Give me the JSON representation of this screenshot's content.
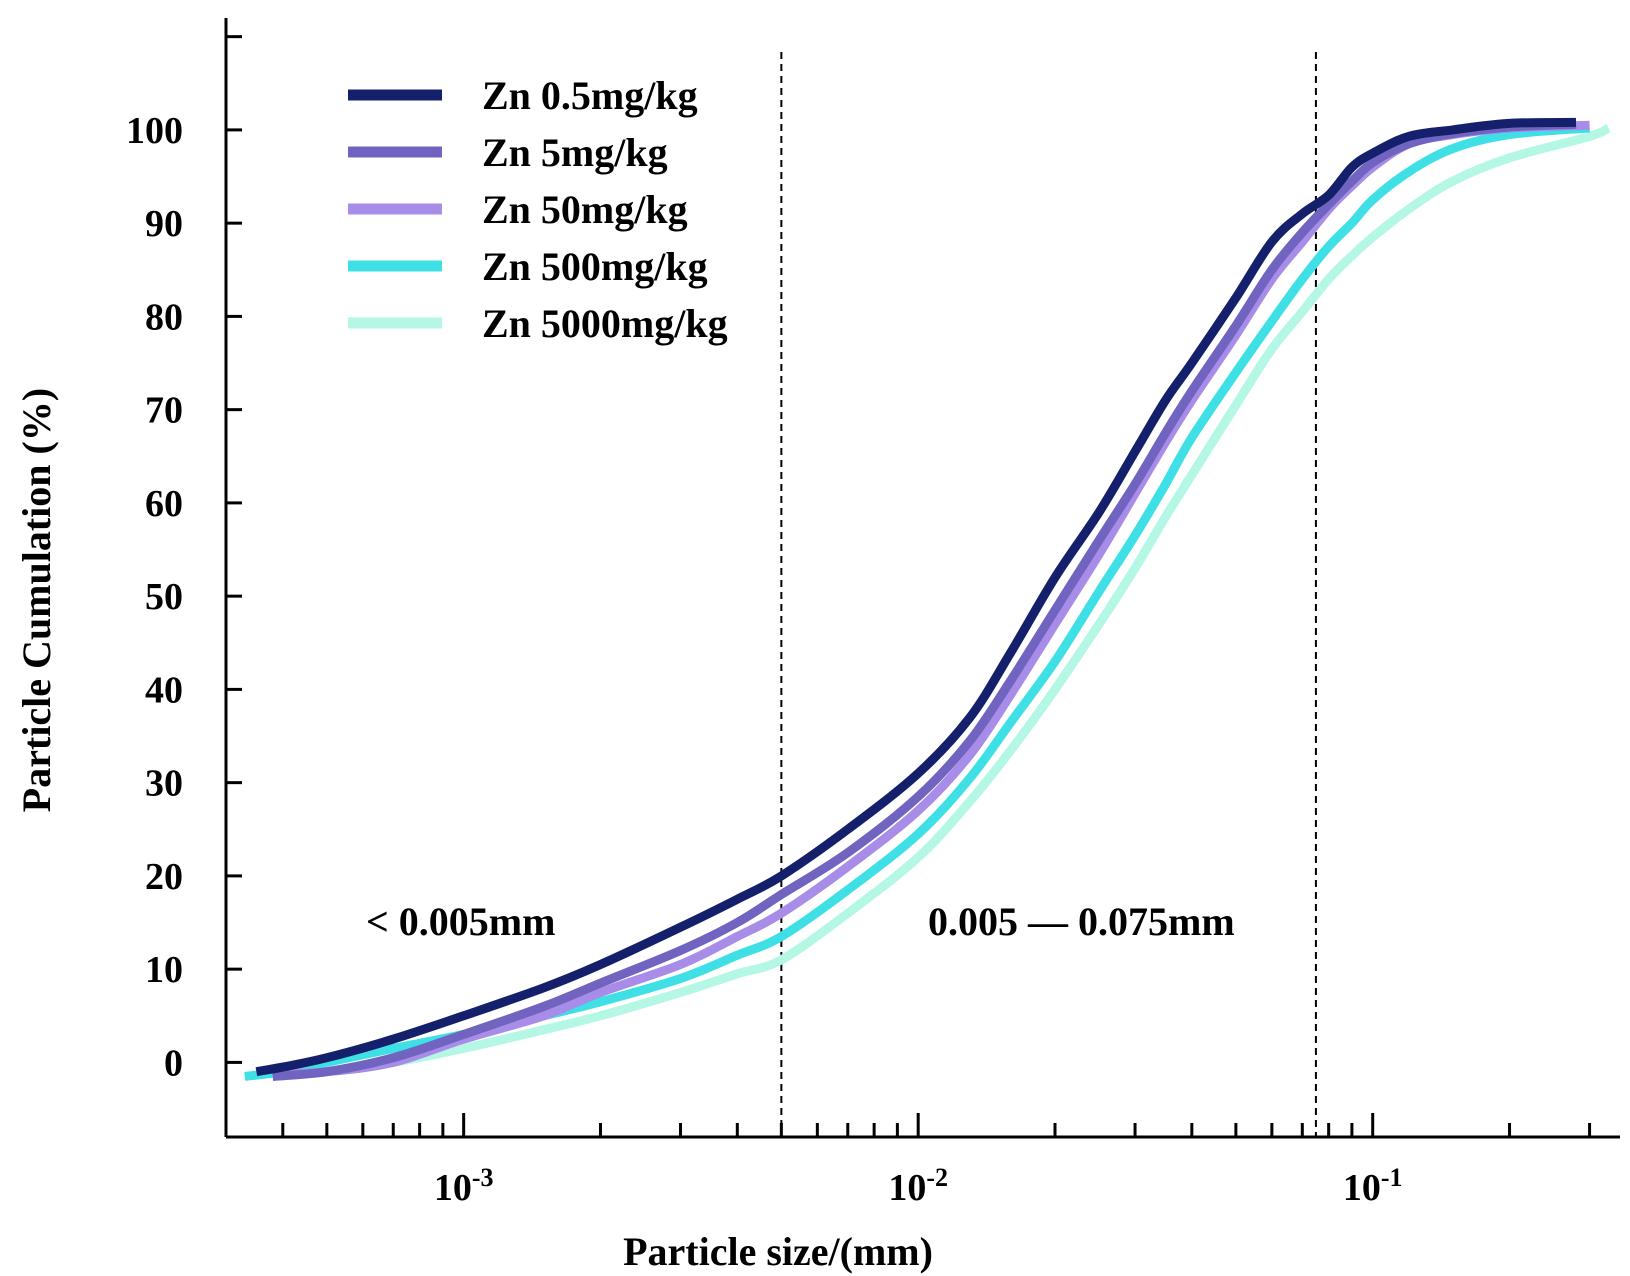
{
  "chart_data": {
    "type": "line",
    "xlabel": "Particle size/(mm)",
    "ylabel": "Particle Cumulation (%)",
    "x_scale": "log",
    "xlim": [
      0.0003,
      0.35
    ],
    "ylim": [
      -8,
      112
    ],
    "x_ticks": [
      {
        "base": "10",
        "exp": "-3",
        "value": 0.001
      },
      {
        "base": "10",
        "exp": "-2",
        "value": 0.01
      },
      {
        "base": "10",
        "exp": "-1",
        "value": 0.1
      }
    ],
    "y_ticks": [
      "0",
      "10",
      "20",
      "30",
      "40",
      "50",
      "60",
      "70",
      "80",
      "90",
      "100"
    ],
    "grid": false,
    "legend_position": "top-left",
    "reference_lines": [
      0.005,
      0.075
    ],
    "annotations": [
      {
        "text": "< 0.005mm"
      },
      {
        "text": "0.005 — 0.075mm"
      }
    ],
    "series": [
      {
        "name": "Zn 0.5mg/kg",
        "color": "#14206b",
        "x": [
          0.00035,
          0.0004,
          0.0005,
          0.0007,
          0.001,
          0.0015,
          0.002,
          0.003,
          0.004,
          0.005,
          0.007,
          0.01,
          0.013,
          0.016,
          0.02,
          0.025,
          0.03,
          0.035,
          0.04,
          0.05,
          0.06,
          0.07,
          0.08,
          0.09,
          0.1,
          0.12,
          0.15,
          0.2,
          0.28
        ],
        "y": [
          -1,
          -0.5,
          0.5,
          2.5,
          5,
          8,
          10.5,
          14.5,
          17.5,
          20,
          25,
          31,
          37,
          44,
          52,
          59,
          65.5,
          71,
          75,
          82,
          88,
          91,
          93,
          96,
          97.5,
          99.3,
          100,
          100.7,
          100.8
        ]
      },
      {
        "name": "Zn 5mg/kg",
        "color": "#7064c0",
        "x": [
          0.00038,
          0.0005,
          0.0007,
          0.001,
          0.0015,
          0.002,
          0.003,
          0.004,
          0.005,
          0.007,
          0.01,
          0.013,
          0.016,
          0.02,
          0.025,
          0.03,
          0.035,
          0.04,
          0.05,
          0.06,
          0.07,
          0.08,
          0.09,
          0.1,
          0.12,
          0.15,
          0.2,
          0.28
        ],
        "y": [
          -1.5,
          -1,
          0.5,
          3,
          6,
          8.5,
          12,
          15,
          18,
          22.5,
          28.5,
          34.5,
          41,
          48.5,
          56,
          62,
          67.5,
          72,
          79,
          85,
          89,
          92,
          94.5,
          96.5,
          98.5,
          99.6,
          100.3,
          100.6
        ]
      },
      {
        "name": "Zn 50mg/kg",
        "color": "#a78ce8",
        "x": [
          0.0004,
          0.0005,
          0.0007,
          0.001,
          0.0015,
          0.002,
          0.003,
          0.004,
          0.005,
          0.007,
          0.01,
          0.013,
          0.016,
          0.02,
          0.025,
          0.03,
          0.035,
          0.04,
          0.05,
          0.06,
          0.07,
          0.08,
          0.09,
          0.1,
          0.12,
          0.15,
          0.2,
          0.3
        ],
        "y": [
          -1.2,
          -1,
          0,
          2.5,
          5,
          7.5,
          10.5,
          13.5,
          16,
          21,
          27,
          33,
          39.5,
          47,
          54.5,
          61,
          66.5,
          71,
          78,
          84,
          88,
          91.5,
          94,
          96,
          98.5,
          99.5,
          100.2,
          100.5
        ]
      },
      {
        "name": "Zn 500mg/kg",
        "color": "#3ee0e6",
        "x": [
          0.00033,
          0.0004,
          0.0005,
          0.0007,
          0.001,
          0.0015,
          0.002,
          0.003,
          0.004,
          0.005,
          0.007,
          0.01,
          0.013,
          0.016,
          0.02,
          0.025,
          0.03,
          0.035,
          0.04,
          0.05,
          0.06,
          0.07,
          0.08,
          0.09,
          0.1,
          0.12,
          0.15,
          0.2,
          0.3
        ],
        "y": [
          -1.5,
          -1,
          0,
          1.5,
          3,
          5,
          6.5,
          9,
          11.5,
          13.5,
          18.5,
          24.5,
          30.5,
          36.5,
          43,
          50.5,
          56.5,
          62,
          67,
          74,
          79.5,
          84,
          87.5,
          90,
          92.5,
          95.5,
          98,
          99.5,
          100.2
        ]
      },
      {
        "name": "Zn 5000mg/kg",
        "color": "#b4f7e4",
        "x": [
          0.0004,
          0.0005,
          0.0007,
          0.001,
          0.0015,
          0.002,
          0.003,
          0.004,
          0.005,
          0.007,
          0.01,
          0.013,
          0.016,
          0.02,
          0.025,
          0.03,
          0.035,
          0.04,
          0.05,
          0.06,
          0.07,
          0.08,
          0.09,
          0.1,
          0.12,
          0.15,
          0.2,
          0.3,
          0.33
        ],
        "y": [
          -1.2,
          -1,
          0,
          1.5,
          3.5,
          5,
          7.5,
          9.5,
          11,
          16,
          22,
          28,
          33.5,
          40,
          47,
          53,
          58.5,
          63,
          70.5,
          76.5,
          80.5,
          84,
          86.5,
          88.5,
          91.5,
          94.5,
          97,
          99.3,
          100.2
        ]
      }
    ]
  }
}
